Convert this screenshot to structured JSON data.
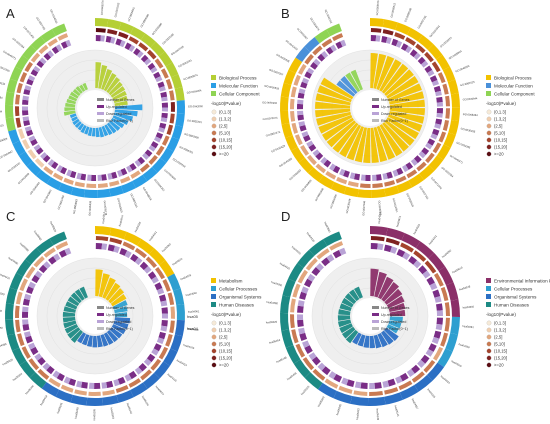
{
  "figure": {
    "panels": [
      {
        "letter": "A",
        "outer_labels": [
          "GO:0005576",
          "GO:0031012",
          "GO:0005615",
          "GO:0009986",
          "GO:0005886",
          "GO:0030198",
          "GO:0007155",
          "GO:0001501",
          "GO:0030574",
          "GO:0006954",
          "GO:0042060",
          "GO:0005201",
          "GO:0005509",
          "GO:0008201",
          "GO:0005518",
          "GO:0050840",
          "GO:0004252",
          "GO:0048018",
          "GO:0005125",
          "GO:0030020",
          "GO:0005178",
          "GO:0005539",
          "GO:0008083",
          "GO:0001968",
          "GO:0042803",
          "GO:0046983",
          "GO:0019838",
          "GO:0005102",
          "GO:0004867",
          "GO:0008009",
          "GO:0001525",
          "GO:0045944",
          "GO:0008284",
          "GO:0030335",
          "GO:0032355",
          "GO:0045471",
          "GO:0051384",
          "GO:0071456",
          "GO:0007165",
          "GO:0016525"
        ],
        "legend_categories": [
          {
            "label": "Biological Process",
            "color": "#b5cf34"
          },
          {
            "label": "Molecular Function",
            "color": "#2a9ee5"
          },
          {
            "label": "Cellular Component",
            "color": "#8fd454"
          }
        ]
      },
      {
        "letter": "B",
        "outer_labels": [
          "GO:0005576",
          "GO:0005615",
          "GO:0030198",
          "GO:0007155",
          "GO:0001501",
          "GO:0030574",
          "GO:0006954",
          "GO:0042060",
          "GO:0001525",
          "GO:0045944",
          "GO:0008284",
          "GO:0030335",
          "GO:0032355",
          "GO:0045471",
          "GO:0051384",
          "GO:0071456",
          "GO:0007165",
          "GO:0016525",
          "GO:0010951",
          "GO:0006955",
          "GO:0007166",
          "GO:0030199",
          "GO:0001666",
          "GO:0001558",
          "GO:0030855",
          "GO:0045893",
          "GO:0043066",
          "GO:0010628",
          "GO:0007275",
          "GO:0070374",
          "GO:0050900",
          "GO:0030593",
          "GO:0007267",
          "GO:0030335",
          "GO:0043410",
          "GO:0051897",
          "GO:0002576",
          "GO:0031012"
        ],
        "legend_categories": [
          {
            "label": "Biological Process",
            "color": "#f2c200"
          },
          {
            "label": "Molecular Function",
            "color": "#4a90d9"
          },
          {
            "label": "Cellular Component",
            "color": "#8fd454"
          }
        ]
      },
      {
        "letter": "C",
        "outer_labels": [
          "hsa04512",
          "hsa04974",
          "hsa04510",
          "hsa04151",
          "hsa04060",
          "hsa04610",
          "hsa04978",
          "hsa04640",
          "hsa04061",
          "hsa04668",
          "hsa04015",
          "hsa04014",
          "hsa04115",
          "hsa04657",
          "hsa05144",
          "hsa05146",
          "hsa05323",
          "hsa05205",
          "hsa05200",
          "hsa05165",
          "hsa05418",
          "hsa05166",
          "hsa05164",
          "hsa05020",
          "hsa04390",
          "hsa04350",
          "hsa04010",
          "hsa04020",
          "hsa04310",
          "hsa00590",
          "hsa00980",
          "hsa00982",
          "hsa00830"
        ],
        "side_labels": [
          "hsa05",
          "hsa04"
        ],
        "legend_categories": [
          {
            "label": "Metabolism",
            "color": "#f2c200"
          },
          {
            "label": "Cellular Processes",
            "color": "#2e9fd0"
          },
          {
            "label": "Organismal Systems",
            "color": "#2b6fc4"
          },
          {
            "label": "Human Diseases",
            "color": "#1c8a84"
          }
        ]
      },
      {
        "letter": "D",
        "outer_labels": [
          "hsa04512",
          "hsa04974",
          "hsa04510",
          "hsa04151",
          "hsa04060",
          "hsa04610",
          "hsa04978",
          "hsa04640",
          "hsa04061",
          "hsa04668",
          "hsa04015",
          "hsa04014",
          "hsa04115",
          "hsa04657",
          "hsa05144",
          "hsa05146",
          "hsa05323",
          "hsa05205",
          "hsa05200",
          "hsa05165",
          "hsa05418",
          "hsa05166",
          "hsa05164",
          "hsa05020",
          "hsa04390",
          "hsa04350",
          "hsa04010",
          "hsa04020",
          "hsa04310",
          "hsa00590"
        ],
        "legend_categories": [
          {
            "label": "Environmental Information Processing",
            "color": "#8b2f68"
          },
          {
            "label": "Cellular Processes",
            "color": "#2e9fd0"
          },
          {
            "label": "Organismal Systems",
            "color": "#2b6fc4"
          },
          {
            "label": "Human Diseases",
            "color": "#1c8a84"
          }
        ]
      }
    ],
    "legend_common": {
      "number_of_genes": "Number of Genes",
      "up_regulated": "Up-regulated",
      "down_regulated": "Down-regulated",
      "rich_factor": "Rich Factor(0~1)",
      "pvalue_title": "-log10(Pvalue)",
      "pvalue_bins": [
        "(0,1.3]",
        "(1.3,2]",
        "(2,5]",
        "(5,10]",
        "(10,15]",
        "(15,20]",
        ">=20"
      ],
      "pvalue_colors": [
        "#f6ead8",
        "#f0cfb0",
        "#e2a77e",
        "#c97a52",
        "#a4442d",
        "#7e2120",
        "#5a0c12"
      ]
    }
  },
  "chart_data": [
    {
      "panel": "A",
      "type": "bar",
      "subtype": "circular",
      "categories": [
        "Biological Process",
        "Biological Process",
        "Biological Process",
        "Biological Process",
        "Biological Process",
        "Biological Process",
        "Biological Process",
        "Biological Process",
        "Biological Process",
        "Biological Process",
        "Molecular Function",
        "Molecular Function",
        "Molecular Function",
        "Molecular Function",
        "Molecular Function",
        "Molecular Function",
        "Molecular Function",
        "Molecular Function",
        "Molecular Function",
        "Molecular Function",
        "Molecular Function",
        "Molecular Function",
        "Molecular Function",
        "Molecular Function",
        "Molecular Function",
        "Molecular Function",
        "Molecular Function",
        "Molecular Function",
        "Molecular Function",
        "Molecular Function",
        "Cellular Component",
        "Cellular Component",
        "Cellular Component",
        "Cellular Component",
        "Cellular Component",
        "Cellular Component",
        "Cellular Component",
        "Cellular Component",
        "Cellular Component",
        "Cellular Component"
      ],
      "rich_factor": [
        0.68,
        0.62,
        0.55,
        0.5,
        0.46,
        0.42,
        0.4,
        0.38,
        0.36,
        0.34,
        0.72,
        0.6,
        0.5,
        0.42,
        0.36,
        0.32,
        0.3,
        0.28,
        0.26,
        0.26,
        0.24,
        0.22,
        0.22,
        0.2,
        0.2,
        0.18,
        0.18,
        0.18,
        0.16,
        0.16,
        0.3,
        0.28,
        0.26,
        0.24,
        0.22,
        0.22,
        0.2,
        0.2,
        0.18,
        0.18
      ],
      "neglog10p_bin": [
        6,
        5,
        5,
        4,
        4,
        4,
        3,
        3,
        3,
        3,
        5,
        4,
        4,
        3,
        3,
        3,
        3,
        2,
        2,
        2,
        2,
        2,
        2,
        2,
        2,
        2,
        1,
        1,
        1,
        1,
        4,
        4,
        3,
        3,
        3,
        3,
        2,
        2,
        2,
        2
      ]
    },
    {
      "panel": "B",
      "type": "bar",
      "subtype": "circular",
      "categories": [
        "Biological Process",
        "Biological Process",
        "Biological Process",
        "Biological Process",
        "Biological Process",
        "Biological Process",
        "Biological Process",
        "Biological Process",
        "Biological Process",
        "Biological Process",
        "Biological Process",
        "Biological Process",
        "Biological Process",
        "Biological Process",
        "Biological Process",
        "Biological Process",
        "Biological Process",
        "Biological Process",
        "Biological Process",
        "Biological Process",
        "Biological Process",
        "Biological Process",
        "Biological Process",
        "Biological Process",
        "Biological Process",
        "Biological Process",
        "Biological Process",
        "Biological Process",
        "Biological Process",
        "Biological Process",
        "Biological Process",
        "Biological Process",
        "Biological Process",
        "Biological Process",
        "Molecular Function",
        "Molecular Function",
        "Cellular Component",
        "Cellular Component"
      ],
      "rich_factor": [
        0.92,
        0.92,
        0.92,
        0.92,
        0.92,
        0.92,
        0.92,
        0.92,
        0.92,
        0.92,
        0.92,
        0.92,
        0.92,
        0.92,
        0.92,
        0.92,
        0.92,
        0.92,
        0.92,
        0.92,
        0.92,
        0.92,
        0.92,
        0.92,
        0.92,
        0.92,
        0.92,
        0.92,
        0.92,
        0.92,
        0.92,
        0.92,
        0.92,
        0.92,
        0.55,
        0.55,
        0.55,
        0.55
      ],
      "neglog10p_bin": [
        5,
        5,
        4,
        4,
        4,
        4,
        4,
        3,
        3,
        3,
        3,
        3,
        3,
        3,
        3,
        3,
        3,
        3,
        3,
        3,
        3,
        2,
        2,
        2,
        2,
        2,
        2,
        2,
        2,
        2,
        2,
        2,
        2,
        2,
        3,
        3,
        3,
        3
      ]
    },
    {
      "panel": "C",
      "type": "bar",
      "subtype": "circular",
      "categories": [
        "Metabolism",
        "Metabolism",
        "Metabolism",
        "Metabolism",
        "Metabolism",
        "Metabolism",
        "Cellular Processes",
        "Cellular Processes",
        "Cellular Processes",
        "Organismal Systems",
        "Organismal Systems",
        "Organismal Systems",
        "Organismal Systems",
        "Organismal Systems",
        "Organismal Systems",
        "Organismal Systems",
        "Organismal Systems",
        "Organismal Systems",
        "Organismal Systems",
        "Organismal Systems",
        "Organismal Systems",
        "Human Diseases",
        "Human Diseases",
        "Human Diseases",
        "Human Diseases",
        "Human Diseases",
        "Human Diseases",
        "Human Diseases",
        "Human Diseases",
        "Human Diseases",
        "Human Diseases",
        "Human Diseases",
        "Human Diseases"
      ],
      "rich_factor": [
        0.7,
        0.62,
        0.56,
        0.5,
        0.46,
        0.42,
        0.38,
        0.34,
        0.32,
        0.4,
        0.38,
        0.36,
        0.34,
        0.33,
        0.32,
        0.31,
        0.3,
        0.3,
        0.29,
        0.28,
        0.28,
        0.36,
        0.35,
        0.34,
        0.33,
        0.32,
        0.32,
        0.31,
        0.3,
        0.3,
        0.3,
        0.3,
        0.3
      ],
      "neglog10p_bin": [
        4,
        4,
        3,
        3,
        3,
        3,
        3,
        3,
        2,
        3,
        3,
        3,
        3,
        3,
        3,
        3,
        2,
        2,
        2,
        2,
        2,
        3,
        3,
        3,
        3,
        3,
        3,
        2,
        2,
        2,
        2,
        2,
        2
      ]
    },
    {
      "panel": "D",
      "type": "bar",
      "subtype": "circular",
      "categories": [
        "Environmental Information Processing",
        "Environmental Information Processing",
        "Environmental Information Processing",
        "Environmental Information Processing",
        "Environmental Information Processing",
        "Environmental Information Processing",
        "Environmental Information Processing",
        "Environmental Information Processing",
        "Cellular Processes",
        "Cellular Processes",
        "Cellular Processes",
        "Organismal Systems",
        "Organismal Systems",
        "Organismal Systems",
        "Organismal Systems",
        "Organismal Systems",
        "Organismal Systems",
        "Organismal Systems",
        "Organismal Systems",
        "Human Diseases",
        "Human Diseases",
        "Human Diseases",
        "Human Diseases",
        "Human Diseases",
        "Human Diseases",
        "Human Diseases",
        "Human Diseases",
        "Human Diseases",
        "Human Diseases",
        "Human Diseases"
      ],
      "rich_factor": [
        0.72,
        0.66,
        0.6,
        0.56,
        0.5,
        0.46,
        0.42,
        0.4,
        0.34,
        0.32,
        0.3,
        0.4,
        0.38,
        0.36,
        0.34,
        0.32,
        0.31,
        0.3,
        0.3,
        0.36,
        0.35,
        0.34,
        0.33,
        0.32,
        0.31,
        0.3,
        0.3,
        0.3,
        0.3,
        0.3
      ],
      "neglog10p_bin": [
        5,
        5,
        4,
        4,
        4,
        3,
        3,
        3,
        3,
        3,
        2,
        3,
        3,
        3,
        3,
        3,
        2,
        2,
        2,
        3,
        3,
        3,
        3,
        3,
        2,
        2,
        2,
        2,
        2,
        2
      ]
    }
  ]
}
